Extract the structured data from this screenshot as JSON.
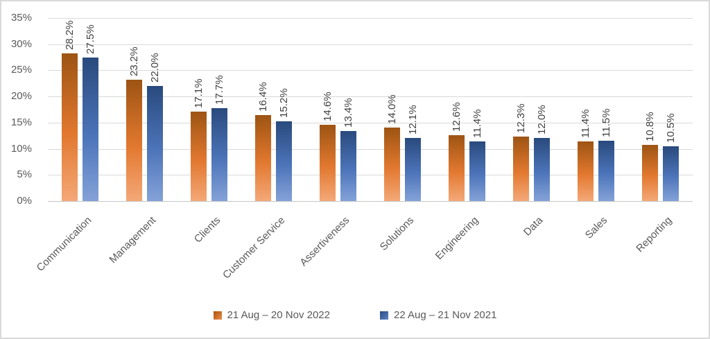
{
  "chart_data": {
    "type": "bar",
    "title": "",
    "xlabel": "",
    "ylabel": "",
    "categories": [
      "Communication",
      "Management",
      "Clients",
      "Customer Service",
      "Assertiveness",
      "Solutions",
      "Engineering",
      "Data",
      "Sales",
      "Reporting"
    ],
    "series": [
      {
        "name": "21 Aug – 20 Nov 2022",
        "values": [
          28.2,
          23.2,
          17.1,
          16.4,
          14.6,
          14.0,
          12.6,
          12.3,
          11.4,
          10.8
        ],
        "labels": [
          "28.2%",
          "23.2%",
          "17.1%",
          "16.4%",
          "14.6%",
          "14.0%",
          "12.6%",
          "12.3%",
          "11.4%",
          "10.8%"
        ],
        "gradient": [
          "#9D5413",
          "#E2782F",
          "#F4A878"
        ],
        "legend_swatch": [
          "#AA520F",
          "#ED8C4B"
        ]
      },
      {
        "name": "22 Aug – 21 Nov 2021",
        "values": [
          27.5,
          22.0,
          17.7,
          15.2,
          13.4,
          12.1,
          11.4,
          12.0,
          11.5,
          10.5
        ],
        "labels": [
          "27.5%",
          "22.0%",
          "17.7%",
          "15.2%",
          "13.4%",
          "12.1%",
          "11.4%",
          "12.0%",
          "11.5%",
          "10.5%"
        ],
        "gradient": [
          "#294A7D",
          "#4C74B9",
          "#84A2D8"
        ],
        "legend_swatch": [
          "#2C4C80",
          "#5B82C4"
        ]
      }
    ],
    "y_ticks": [
      "35%",
      "30%",
      "25%",
      "20%",
      "15%",
      "10%",
      "5%",
      "0%"
    ],
    "ylim": [
      0,
      35
    ],
    "grid": true,
    "legend_position": "bottom",
    "colors": {
      "gridline": "#D9D9D9",
      "axis_line": "#C6C6C6",
      "tick_label": "#595959",
      "data_label": "#404040",
      "legend_text": "#595959",
      "background": "#FFFFFF"
    }
  }
}
